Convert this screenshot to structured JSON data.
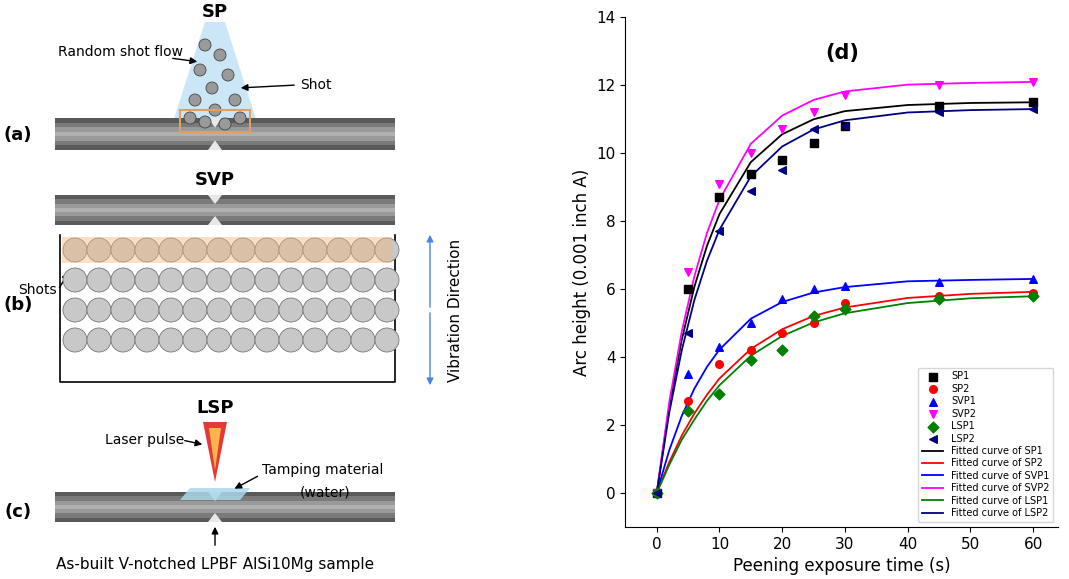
{
  "chart_data": {
    "type": "line",
    "title": "(d)",
    "x_label": "Peening exposure time (s)",
    "y_label": "Arc height (0.001 inch A)",
    "xlim": [
      -5,
      64
    ],
    "ylim": [
      -1,
      14
    ],
    "xticks": [
      0,
      10,
      20,
      30,
      40,
      50,
      60
    ],
    "yticks": [
      0,
      2,
      4,
      6,
      8,
      10,
      12,
      14
    ],
    "legend": "lower right",
    "x": [
      0,
      5,
      10,
      15,
      20,
      25,
      30,
      45,
      60
    ],
    "series": [
      {
        "name": "SP1",
        "type": "scatter",
        "marker": "square",
        "color": "#000000",
        "values": [
          0,
          6.0,
          8.7,
          9.4,
          9.8,
          10.3,
          10.8,
          11.4,
          11.5
        ]
      },
      {
        "name": "SP2",
        "type": "scatter",
        "marker": "circle",
        "color": "#ff0000",
        "values": [
          0,
          2.7,
          3.8,
          4.2,
          4.7,
          5.0,
          5.6,
          5.8,
          5.9
        ]
      },
      {
        "name": "SVP1",
        "type": "scatter",
        "marker": "triangle_up",
        "color": "#0000ff",
        "values": [
          0,
          3.5,
          4.3,
          5.0,
          5.7,
          6.0,
          6.1,
          6.2,
          6.3
        ]
      },
      {
        "name": "SVP2",
        "type": "scatter",
        "marker": "triangle_down",
        "color": "#ff00ff",
        "values": [
          0,
          6.5,
          9.1,
          10.0,
          10.7,
          11.2,
          11.7,
          12.0,
          12.1
        ]
      },
      {
        "name": "LSP1",
        "type": "scatter",
        "marker": "diamond",
        "color": "#008000",
        "values": [
          0,
          2.4,
          2.9,
          3.9,
          4.2,
          5.2,
          5.4,
          5.7,
          5.8
        ]
      },
      {
        "name": "LSP2",
        "type": "scatter",
        "marker": "triangle_left",
        "color": "#000080",
        "values": [
          0,
          4.7,
          7.7,
          8.9,
          9.5,
          10.7,
          10.8,
          11.2,
          11.3
        ]
      },
      {
        "name": "Fitted curve of SP1",
        "type": "line",
        "line_style": "solid",
        "color": "#000000",
        "x": [
          0,
          2,
          4,
          6,
          8,
          10,
          15,
          20,
          25,
          30,
          40,
          50,
          60
        ],
        "values": [
          0,
          2.55,
          4.52,
          6.07,
          7.27,
          8.21,
          9.74,
          10.56,
          11.0,
          11.24,
          11.42,
          11.48,
          11.5
        ]
      },
      {
        "name": "Fitted curve of SP2",
        "type": "line",
        "line_style": "solid",
        "color": "#ff0000",
        "x": [
          0,
          2,
          4,
          6,
          8,
          10,
          15,
          20,
          25,
          30,
          40,
          50,
          60
        ],
        "values": [
          0,
          0.91,
          1.69,
          2.34,
          2.89,
          3.37,
          4.24,
          4.82,
          5.21,
          5.46,
          5.74,
          5.86,
          5.92
        ]
      },
      {
        "name": "Fitted curve of SVP1",
        "type": "line",
        "line_style": "solid",
        "color": "#0000ff",
        "x": [
          0,
          2,
          4,
          6,
          8,
          10,
          15,
          20,
          25,
          30,
          40,
          50,
          60
        ],
        "values": [
          0,
          1.26,
          2.27,
          3.07,
          3.71,
          4.22,
          5.13,
          5.62,
          5.9,
          6.06,
          6.23,
          6.27,
          6.3
        ]
      },
      {
        "name": "Fitted curve of SVP2",
        "type": "line",
        "line_style": "solid",
        "color": "#ff00ff",
        "x": [
          0,
          2,
          4,
          6,
          8,
          10,
          15,
          20,
          25,
          30,
          40,
          50,
          60
        ],
        "values": [
          0,
          2.68,
          4.76,
          6.38,
          7.65,
          8.63,
          10.28,
          11.11,
          11.57,
          11.82,
          12.02,
          12.07,
          12.1
        ]
      },
      {
        "name": "Fitted curve of LSP1",
        "type": "line",
        "line_style": "solid",
        "color": "#008000",
        "x": [
          0,
          2,
          4,
          6,
          8,
          10,
          15,
          20,
          25,
          30,
          40,
          50,
          60
        ],
        "values": [
          0,
          0.83,
          1.57,
          2.16,
          2.71,
          3.17,
          4.04,
          4.62,
          5.02,
          5.29,
          5.59,
          5.73,
          5.79
        ]
      },
      {
        "name": "Fitted curve of LSP2",
        "type": "line",
        "line_style": "solid",
        "color": "#000080",
        "x": [
          0,
          2,
          4,
          6,
          8,
          10,
          15,
          20,
          25,
          30,
          40,
          50,
          60
        ],
        "values": [
          0,
          2.37,
          4.21,
          5.68,
          6.83,
          7.75,
          9.32,
          10.2,
          10.7,
          10.97,
          11.2,
          11.27,
          11.3
        ]
      }
    ]
  },
  "diagram": {
    "a": {
      "label": "(a)",
      "title": "SP",
      "shot_flow": "Random shot flow",
      "shot": "Shot"
    },
    "b": {
      "label": "(b)",
      "title": "SVP",
      "shots": "Shots",
      "vibration": "Vibration Direction"
    },
    "c": {
      "label": "(c)",
      "title": "LSP",
      "laser": "Laser pulse",
      "tamping": "Tamping material",
      "tamping_medium": "(water)",
      "sample": "As-built V-notched LPBF AlSi10Mg sample"
    }
  }
}
